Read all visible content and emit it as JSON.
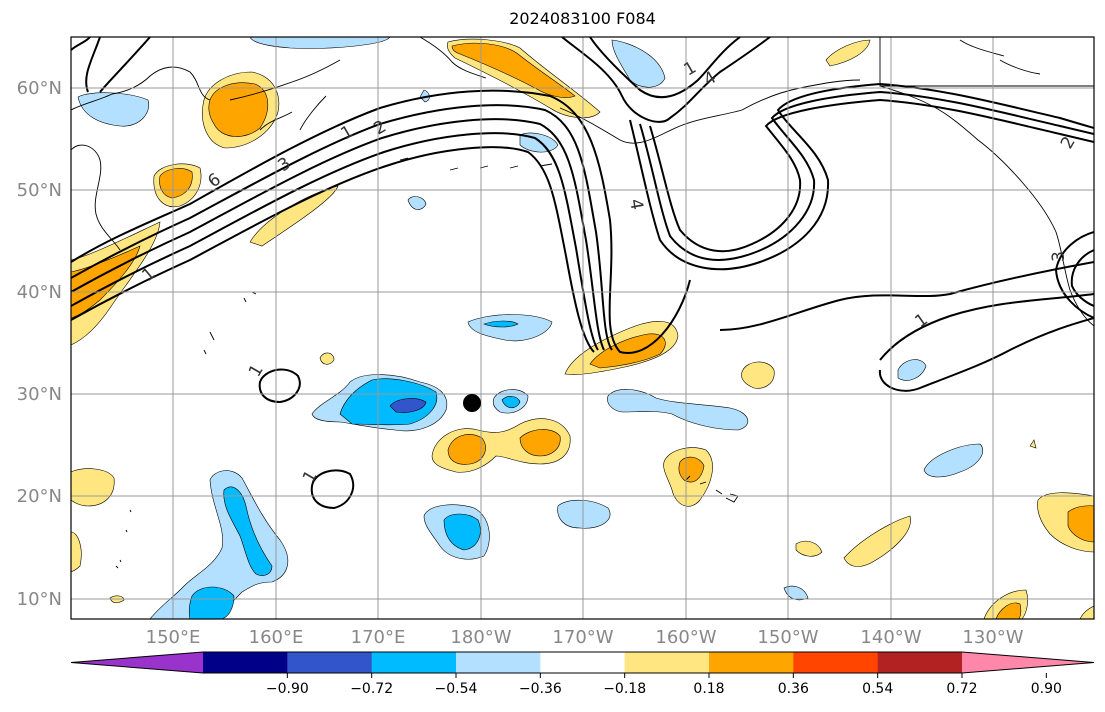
{
  "title": "2024083100 F084",
  "lat_labels": [
    "60°N",
    "50°N",
    "40°N",
    "30°N",
    "20°N",
    "10°N"
  ],
  "lon_labels": [
    "150°E",
    "160°E",
    "170°E",
    "180°W",
    "170°W",
    "160°W",
    "150°W",
    "140°W",
    "130°W"
  ],
  "contour_labels": [
    "1",
    "2",
    "3",
    "4",
    "6",
    "1",
    "1",
    "1",
    "1",
    "1",
    "3",
    "4",
    "2"
  ],
  "colorbar": {
    "tick_labels": [
      "−0.90",
      "−0.72",
      "−0.54",
      "−0.36",
      "−0.18",
      "0.18",
      "0.36",
      "0.54",
      "0.72",
      "0.90"
    ],
    "colors": [
      "#9933cc",
      "#000088",
      "#3355cc",
      "#00bbff",
      "#b3e0ff",
      "#ffffff",
      "#ffe680",
      "#ffa500",
      "#ff4500",
      "#b22222",
      "#ff88aa"
    ]
  },
  "colors": {
    "light_blue": "#b3e0ff",
    "blue": "#00bbff",
    "dark_blue": "#3355cc",
    "yellow": "#ffe680",
    "orange": "#ffa500",
    "grid": "#999999",
    "tick_label": "#888888"
  },
  "marker": "storm-center-dot-icon"
}
